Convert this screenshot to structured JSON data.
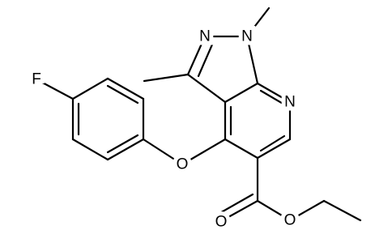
{
  "atoms": [
    {
      "label": "N"
    },
    {
      "label": "N"
    },
    {
      "label": "N"
    },
    {
      "label": "F"
    },
    {
      "label": "O"
    },
    {
      "label": "O"
    },
    {
      "label": "O"
    }
  ]
}
